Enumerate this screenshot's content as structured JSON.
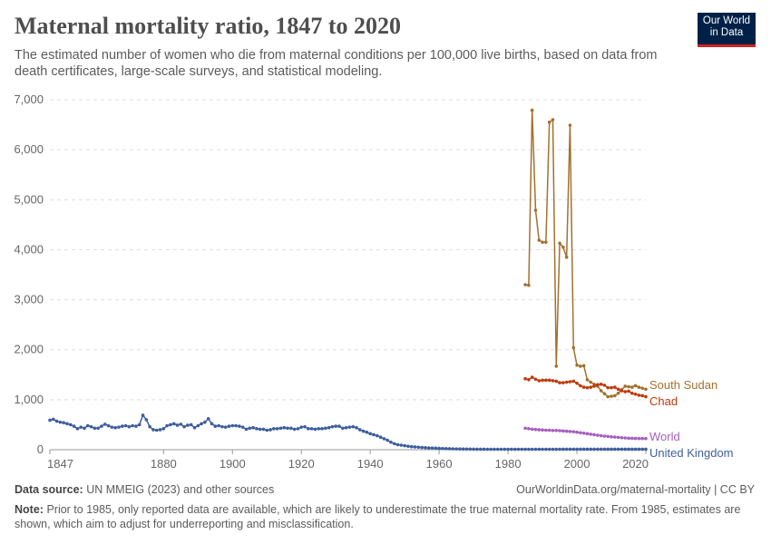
{
  "title": "Maternal mortality ratio, 1847 to 2020",
  "subtitle": "The estimated number of women who die from maternal conditions per 100,000 live births, based on data from death certificates, large-scale surveys, and statistical modeling.",
  "logo": "Our World in Data",
  "footer": {
    "source_label": "Data source:",
    "source": "UN MMEIG (2023) and other sources",
    "url": "OurWorldinData.org/maternal-mortality | CC BY",
    "note_label": "Note:",
    "note": "Prior to 1985, only reported data are available, which are likely to underestimate the true maternal mortality rate. From 1985, estimates are shown, which aim to adjust for underreporting and misclassification."
  },
  "chart_data": {
    "type": "line",
    "title": "Maternal mortality ratio, 1847 to 2020",
    "xlim": [
      1847,
      2020
    ],
    "ylim": [
      0,
      7000
    ],
    "grid": true,
    "legend": "right-end labels",
    "xticks": [
      "1847",
      "1880",
      "1900",
      "1920",
      "1940",
      "1960",
      "1980",
      "2000",
      "2020"
    ],
    "yticks": [
      "0",
      "1,000",
      "2,000",
      "3,000",
      "4,000",
      "5,000",
      "6,000",
      "7,000"
    ],
    "series": [
      {
        "name": "South Sudan",
        "color": "#a2712f",
        "start": 1985,
        "values": [
          3300,
          3290,
          6790,
          4790,
          4190,
          4150,
          4150,
          6550,
          6600,
          1670,
          4130,
          4050,
          3850,
          6490,
          2040,
          1690,
          1670,
          1680,
          1400,
          1350,
          1310,
          1270,
          1180,
          1120,
          1060,
          1070,
          1080,
          1130,
          1200,
          1270,
          1260,
          1250,
          1280,
          1250,
          1230,
          1210
        ]
      },
      {
        "name": "Chad",
        "color": "#c0390b",
        "start": 1985,
        "values": [
          1420,
          1400,
          1450,
          1410,
          1380,
          1390,
          1390,
          1390,
          1380,
          1370,
          1340,
          1340,
          1350,
          1360,
          1370,
          1330,
          1280,
          1250,
          1240,
          1250,
          1270,
          1300,
          1310,
          1290,
          1240,
          1240,
          1250,
          1210,
          1180,
          1160,
          1170,
          1130,
          1110,
          1090,
          1080,
          1060
        ]
      },
      {
        "name": "World",
        "color": "#a65fc0",
        "start": 1985,
        "values": [
          430,
          420,
          410,
          405,
          400,
          395,
          390,
          390,
          385,
          385,
          380,
          375,
          370,
          365,
          360,
          350,
          340,
          330,
          320,
          310,
          300,
          290,
          280,
          272,
          265,
          258,
          252,
          246,
          240,
          235,
          230,
          227,
          225,
          224,
          223,
          223
        ]
      },
      {
        "name": "United Kingdom",
        "color": "#3e5e9c",
        "start": 1847,
        "values": [
          590,
          610,
          570,
          550,
          540,
          520,
          500,
          470,
          420,
          450,
          430,
          480,
          460,
          430,
          430,
          470,
          510,
          480,
          450,
          440,
          450,
          470,
          480,
          460,
          480,
          470,
          500,
          690,
          600,
          460,
          400,
          390,
          400,
          420,
          480,
          500,
          520,
          490,
          510,
          460,
          490,
          500,
          440,
          480,
          520,
          550,
          620,
          520,
          470,
          480,
          460,
          450,
          470,
          480,
          480,
          470,
          450,
          410,
          430,
          440,
          420,
          410,
          410,
          390,
          400,
          420,
          420,
          430,
          440,
          430,
          430,
          410,
          420,
          450,
          460,
          420,
          420,
          410,
          420,
          420,
          430,
          440,
          460,
          470,
          470,
          430,
          440,
          450,
          460,
          440,
          400,
          370,
          350,
          320,
          300,
          280,
          250,
          220,
          190,
          150,
          120,
          100,
          90,
          80,
          70,
          60,
          55,
          50,
          45,
          40,
          35,
          33,
          30,
          28,
          25,
          22,
          20,
          18,
          16,
          15,
          14,
          13,
          12,
          11,
          10,
          10,
          10,
          9,
          9,
          9,
          9,
          9,
          8,
          8,
          8,
          8,
          8,
          8,
          8,
          8,
          8,
          8,
          8,
          9,
          9,
          9,
          9,
          9,
          9,
          10,
          10,
          10,
          10,
          10,
          10,
          10,
          10,
          10,
          10,
          10,
          10,
          10,
          10,
          10,
          10,
          10,
          10,
          10,
          10,
          10,
          10,
          10,
          10,
          10
        ]
      }
    ]
  }
}
